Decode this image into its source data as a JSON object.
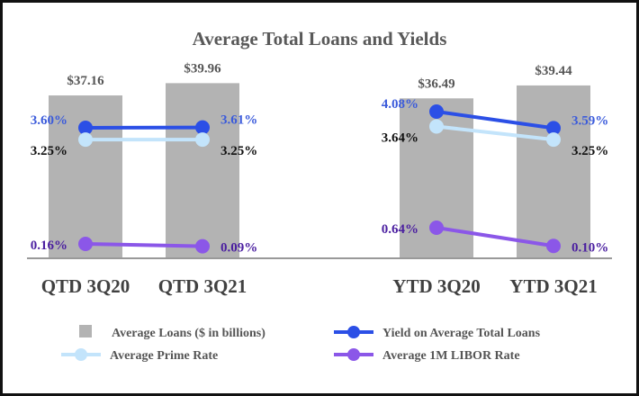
{
  "chart_data": {
    "type": "bar",
    "title": "Average Total Loans and Yields",
    "categories": [
      "QTD 3Q20",
      "QTD 3Q21",
      "YTD 3Q20",
      "YTD 3Q21"
    ],
    "bar_series": {
      "name": "Average Loans ($ in billions)",
      "values": [
        37.16,
        39.96,
        36.49,
        39.44
      ],
      "labels": [
        "$37.16",
        "$39.96",
        "$36.49",
        "$39.44"
      ],
      "color": "#b3b3b3"
    },
    "line_series": [
      {
        "name": "Yield on Average Total Loans",
        "values": [
          3.6,
          3.61,
          4.08,
          3.59
        ],
        "labels": [
          "3.60%",
          "3.61%",
          "4.08%",
          "3.59%"
        ],
        "color": "#2b4fe6",
        "label_color": "#3b5bdb"
      },
      {
        "name": "Average Prime Rate",
        "values": [
          3.25,
          3.25,
          3.64,
          3.25
        ],
        "labels": [
          "3.25%",
          "3.25%",
          "3.64%",
          "3.25%"
        ],
        "color": "#c3e4fb",
        "label_color": "#111111"
      },
      {
        "name": "Average 1M LIBOR Rate",
        "values": [
          0.16,
          0.09,
          0.64,
          0.1
        ],
        "labels": [
          "0.16%",
          "0.09%",
          "0.64%",
          "0.10%"
        ],
        "color": "#8b57e8",
        "label_color": "#4b1fa0"
      }
    ],
    "groups": [
      [
        "QTD 3Q20",
        "QTD 3Q21"
      ],
      [
        "YTD 3Q20",
        "YTD 3Q21"
      ]
    ],
    "legend_position": "bottom",
    "grid": false
  }
}
